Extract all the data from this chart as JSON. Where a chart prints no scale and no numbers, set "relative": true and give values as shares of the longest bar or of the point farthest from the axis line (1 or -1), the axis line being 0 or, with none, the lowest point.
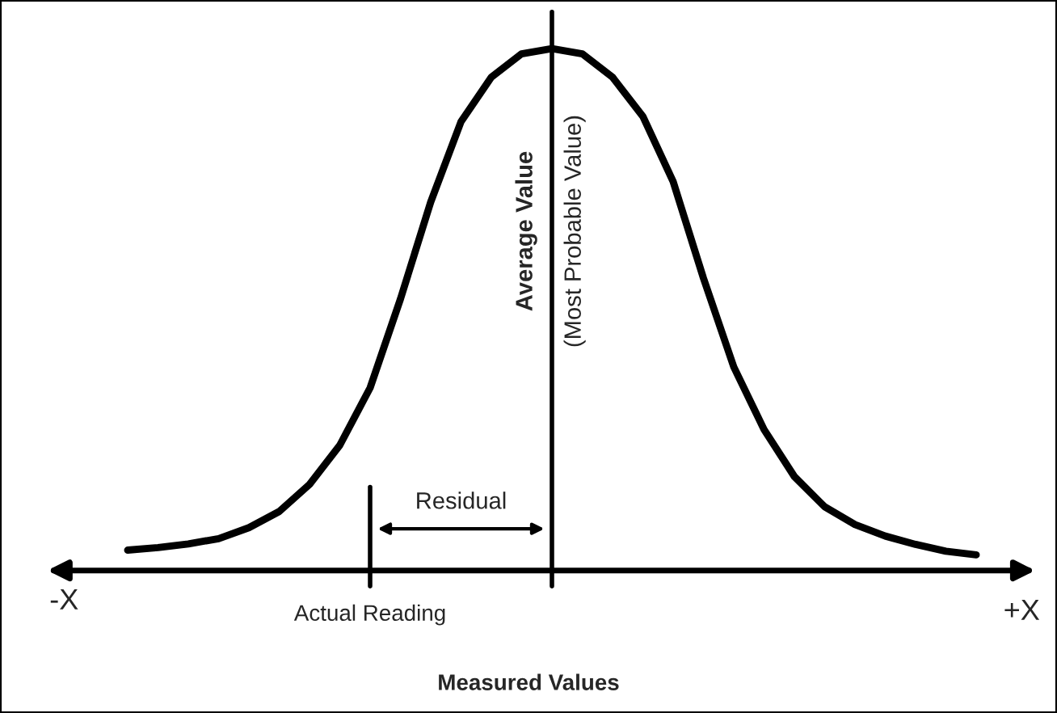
{
  "chart_data": {
    "type": "line",
    "relative": true,
    "xlabel": "Measured Values",
    "categories": [
      null,
      null,
      null,
      null,
      null,
      null,
      null,
      null,
      null,
      null,
      null,
      null,
      null,
      null,
      null,
      null,
      null,
      null,
      null,
      null,
      null,
      null,
      null,
      null,
      null,
      null,
      null,
      null,
      null
    ],
    "series": [
      {
        "color": "#000000",
        "values": [
          0.039,
          0.044,
          0.051,
          0.061,
          0.082,
          0.113,
          0.165,
          0.24,
          0.35,
          0.52,
          0.706,
          0.86,
          0.945,
          0.99,
          1,
          0.99,
          0.945,
          0.87,
          0.745,
          0.56,
          0.39,
          0.27,
          0.18,
          0.122,
          0.088,
          0.066,
          0.05,
          0.037,
          0.03
        ]
      }
    ],
    "annotations": [
      "Average Value",
      "(Most Probable Value)",
      "Residual",
      "Actual Reading",
      "-X",
      "+X"
    ],
    "marker": "none",
    "line_style": "solid"
  }
}
